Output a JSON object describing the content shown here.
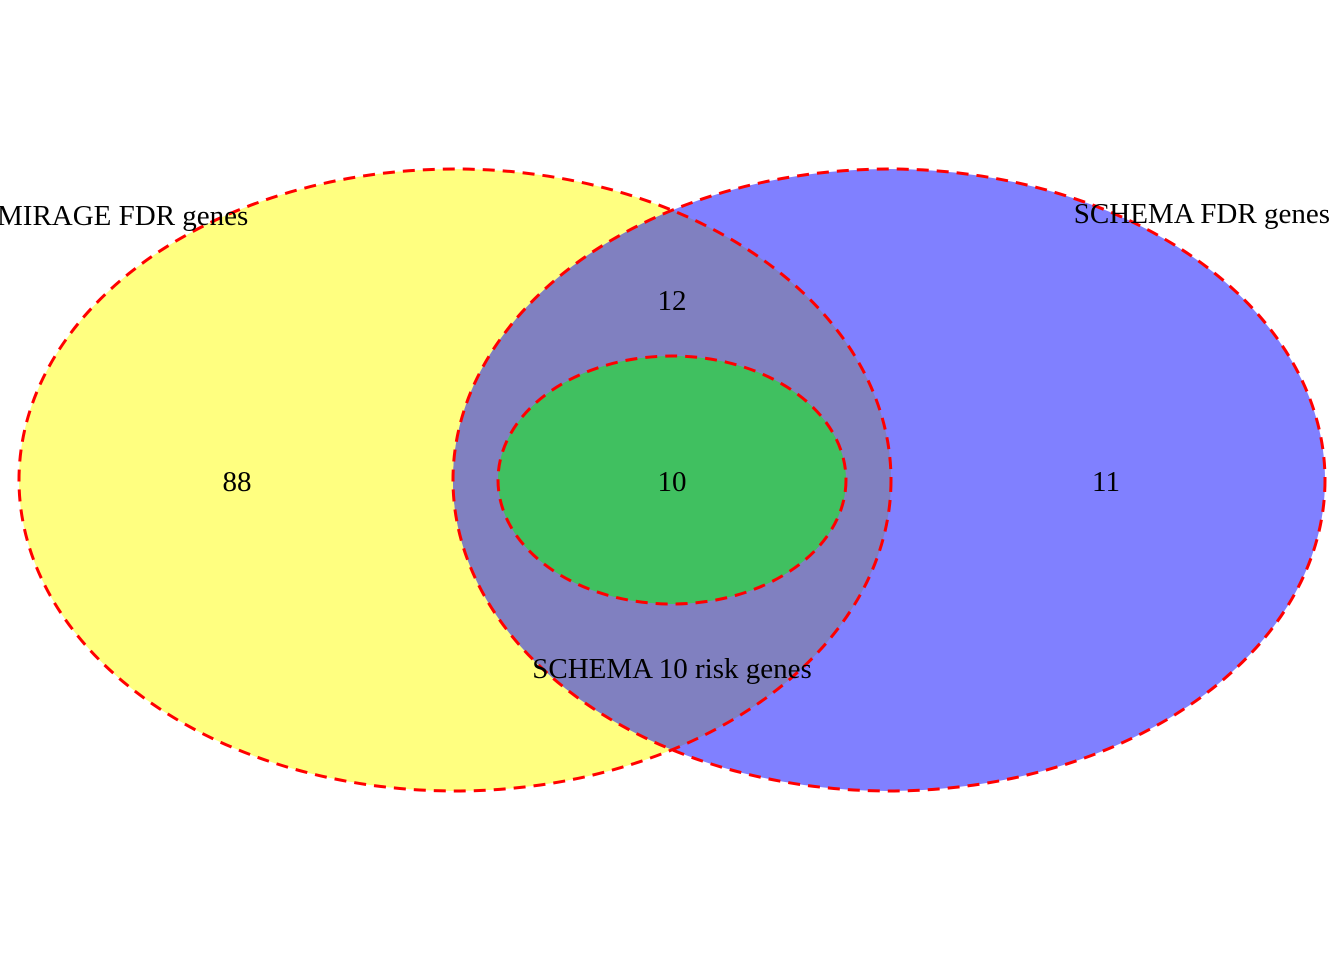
{
  "sets": [
    {
      "id": "mirage",
      "label": "MIRAGE FDR genes",
      "fill": "#FFFF80"
    },
    {
      "id": "schema",
      "label": "SCHEMA FDR genes",
      "fill": "#8080FF"
    },
    {
      "id": "risk",
      "label": "SCHEMA 10 risk genes",
      "fill": "#40C060"
    }
  ],
  "regions": {
    "mirage_only": "88",
    "mirage_schema_only": "12",
    "all_three": "10",
    "schema_only": "11"
  },
  "style": {
    "outline_color": "#FF0000",
    "overlap_fill": "#8080C0",
    "background": "#FFFFFF"
  }
}
